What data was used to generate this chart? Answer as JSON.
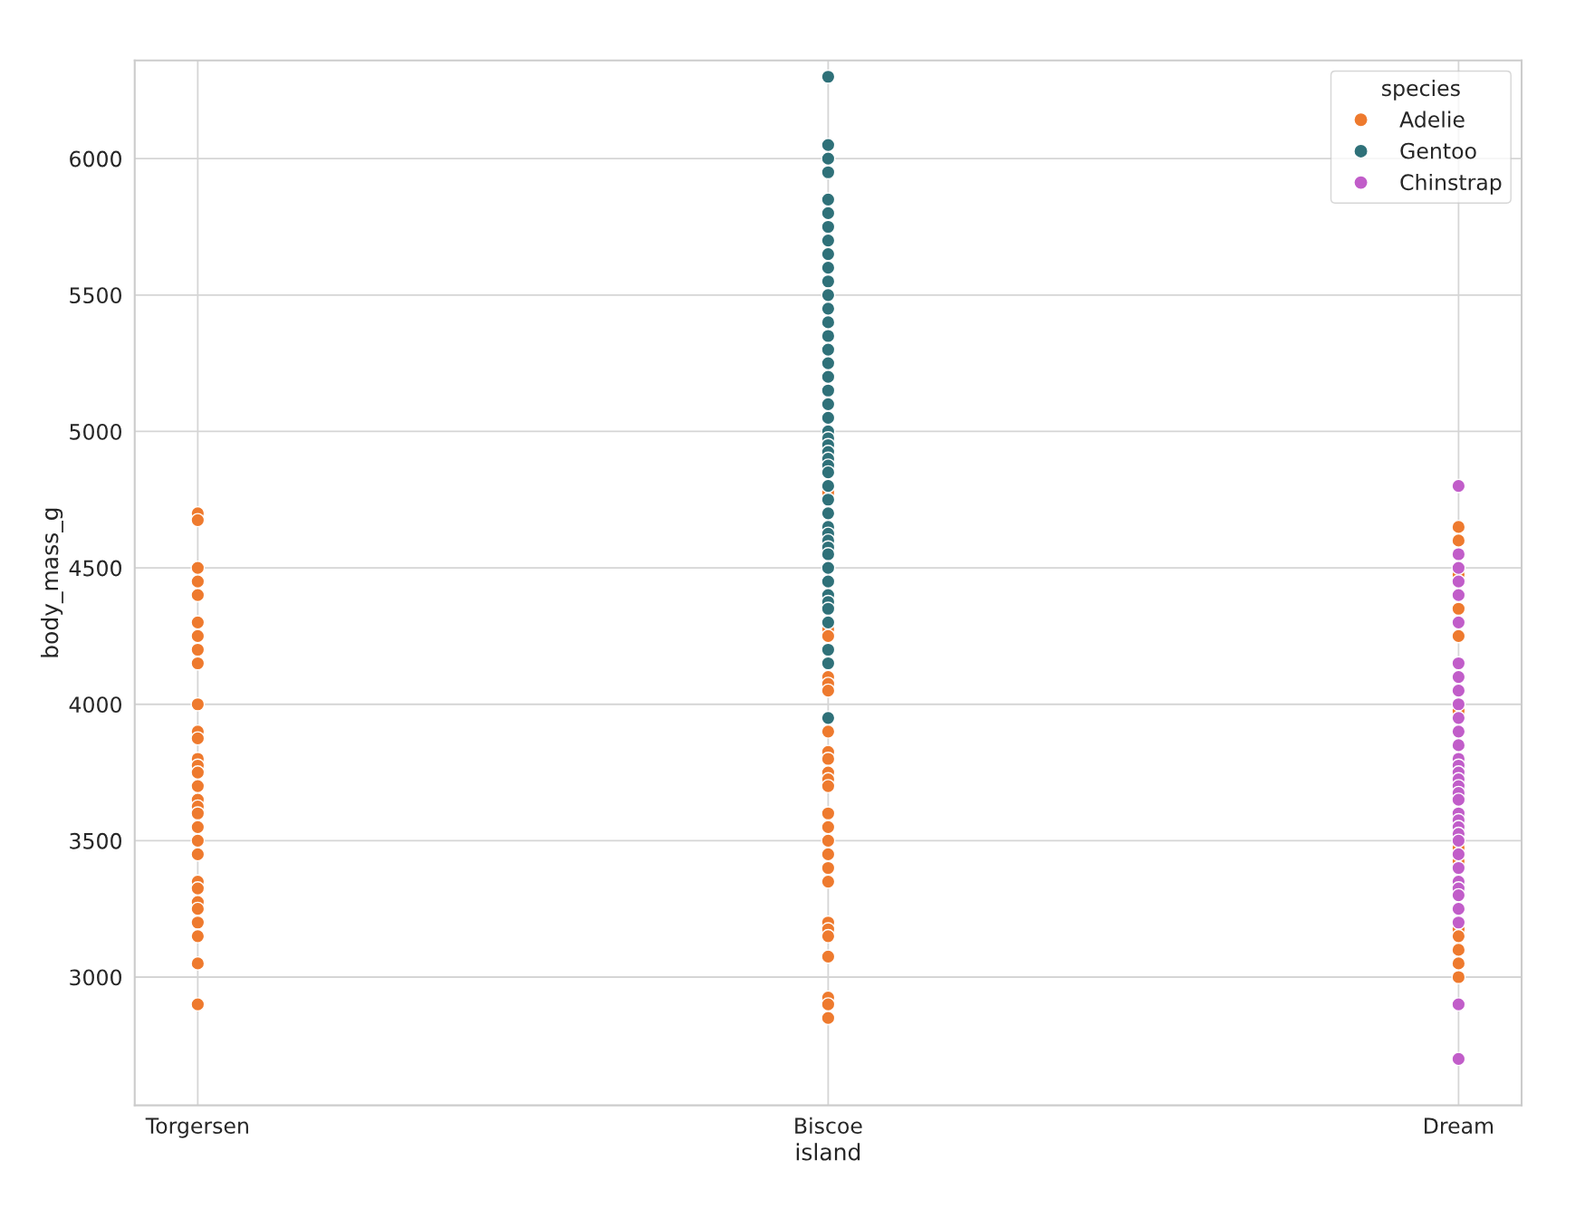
{
  "chart_data": {
    "type": "scatter",
    "xlabel": "island",
    "ylabel": "body_mass_g",
    "legend_title": "species",
    "categories": [
      "Torgersen",
      "Biscoe",
      "Dream"
    ],
    "ylim": [
      2530,
      6360
    ],
    "yticks": [
      3000,
      3500,
      4000,
      4500,
      5000,
      5500,
      6000
    ],
    "grid": true,
    "legend": "top right",
    "marker": "circle",
    "series": [
      {
        "name": "Adelie",
        "color": "#ee7a2e",
        "x": [
          "Torgersen",
          "Torgersen",
          "Torgersen",
          "Torgersen",
          "Torgersen",
          "Torgersen",
          "Torgersen",
          "Torgersen",
          "Torgersen",
          "Torgersen",
          "Torgersen",
          "Torgersen",
          "Torgersen",
          "Torgersen",
          "Torgersen",
          "Torgersen",
          "Torgersen",
          "Torgersen",
          "Torgersen",
          "Torgersen",
          "Torgersen",
          "Torgersen",
          "Torgersen",
          "Torgersen",
          "Torgersen",
          "Torgersen",
          "Torgersen",
          "Torgersen",
          "Torgersen",
          "Torgersen",
          "Biscoe",
          "Biscoe",
          "Biscoe",
          "Biscoe",
          "Biscoe",
          "Biscoe",
          "Biscoe",
          "Biscoe",
          "Biscoe",
          "Biscoe",
          "Biscoe",
          "Biscoe",
          "Biscoe",
          "Biscoe",
          "Biscoe",
          "Biscoe",
          "Biscoe",
          "Biscoe",
          "Biscoe",
          "Biscoe",
          "Biscoe",
          "Biscoe",
          "Biscoe",
          "Biscoe",
          "Biscoe",
          "Dream",
          "Dream",
          "Dream",
          "Dream",
          "Dream",
          "Dream",
          "Dream",
          "Dream",
          "Dream",
          "Dream",
          "Dream",
          "Dream",
          "Dream"
        ],
        "values": [
          4700,
          4675,
          4500,
          4450,
          4400,
          4300,
          4250,
          4200,
          4150,
          4000,
          3900,
          3875,
          3800,
          3775,
          3750,
          3700,
          3650,
          3625,
          3600,
          3550,
          3500,
          3450,
          3350,
          3325,
          3275,
          3250,
          3200,
          3150,
          3050,
          2900,
          4775,
          4275,
          4250,
          4100,
          4075,
          4050,
          3900,
          3825,
          3800,
          3750,
          3725,
          3700,
          3600,
          3550,
          3500,
          3450,
          3400,
          3350,
          3200,
          3175,
          3150,
          3075,
          2925,
          2900,
          2850,
          4650,
          4600,
          4475,
          4350,
          4250,
          3975,
          3475,
          3425,
          3175,
          3150,
          3100,
          3050,
          3000
        ]
      },
      {
        "name": "Gentoo",
        "color": "#2f7179",
        "x": [
          "Biscoe",
          "Biscoe",
          "Biscoe",
          "Biscoe",
          "Biscoe",
          "Biscoe",
          "Biscoe",
          "Biscoe",
          "Biscoe",
          "Biscoe",
          "Biscoe",
          "Biscoe",
          "Biscoe",
          "Biscoe",
          "Biscoe",
          "Biscoe",
          "Biscoe",
          "Biscoe",
          "Biscoe",
          "Biscoe",
          "Biscoe",
          "Biscoe",
          "Biscoe",
          "Biscoe",
          "Biscoe",
          "Biscoe",
          "Biscoe",
          "Biscoe",
          "Biscoe",
          "Biscoe",
          "Biscoe",
          "Biscoe",
          "Biscoe",
          "Biscoe",
          "Biscoe",
          "Biscoe",
          "Biscoe",
          "Biscoe",
          "Biscoe",
          "Biscoe",
          "Biscoe",
          "Biscoe",
          "Biscoe",
          "Biscoe",
          "Biscoe"
        ],
        "values": [
          6300,
          6050,
          6000,
          5950,
          5850,
          5800,
          5750,
          5700,
          5650,
          5600,
          5550,
          5500,
          5450,
          5400,
          5350,
          5300,
          5250,
          5200,
          5150,
          5100,
          5050,
          5000,
          4975,
          4950,
          4925,
          4900,
          4875,
          4850,
          4800,
          4750,
          4700,
          4650,
          4625,
          4600,
          4575,
          4550,
          4500,
          4450,
          4400,
          4375,
          4350,
          4300,
          4200,
          4150,
          3950
        ]
      },
      {
        "name": "Chinstrap",
        "color": "#c15dc9",
        "x": [
          "Dream",
          "Dream",
          "Dream",
          "Dream",
          "Dream",
          "Dream",
          "Dream",
          "Dream",
          "Dream",
          "Dream",
          "Dream",
          "Dream",
          "Dream",
          "Dream",
          "Dream",
          "Dream",
          "Dream",
          "Dream",
          "Dream",
          "Dream",
          "Dream",
          "Dream",
          "Dream",
          "Dream",
          "Dream",
          "Dream",
          "Dream",
          "Dream",
          "Dream",
          "Dream",
          "Dream",
          "Dream",
          "Dream",
          "Dream"
        ],
        "values": [
          4800,
          4550,
          4500,
          4450,
          4400,
          4300,
          4150,
          4100,
          4050,
          4000,
          3950,
          3900,
          3850,
          3800,
          3775,
          3750,
          3725,
          3700,
          3675,
          3650,
          3600,
          3575,
          3550,
          3525,
          3500,
          3450,
          3400,
          3350,
          3325,
          3300,
          3250,
          3200,
          2900,
          2700
        ]
      }
    ]
  }
}
